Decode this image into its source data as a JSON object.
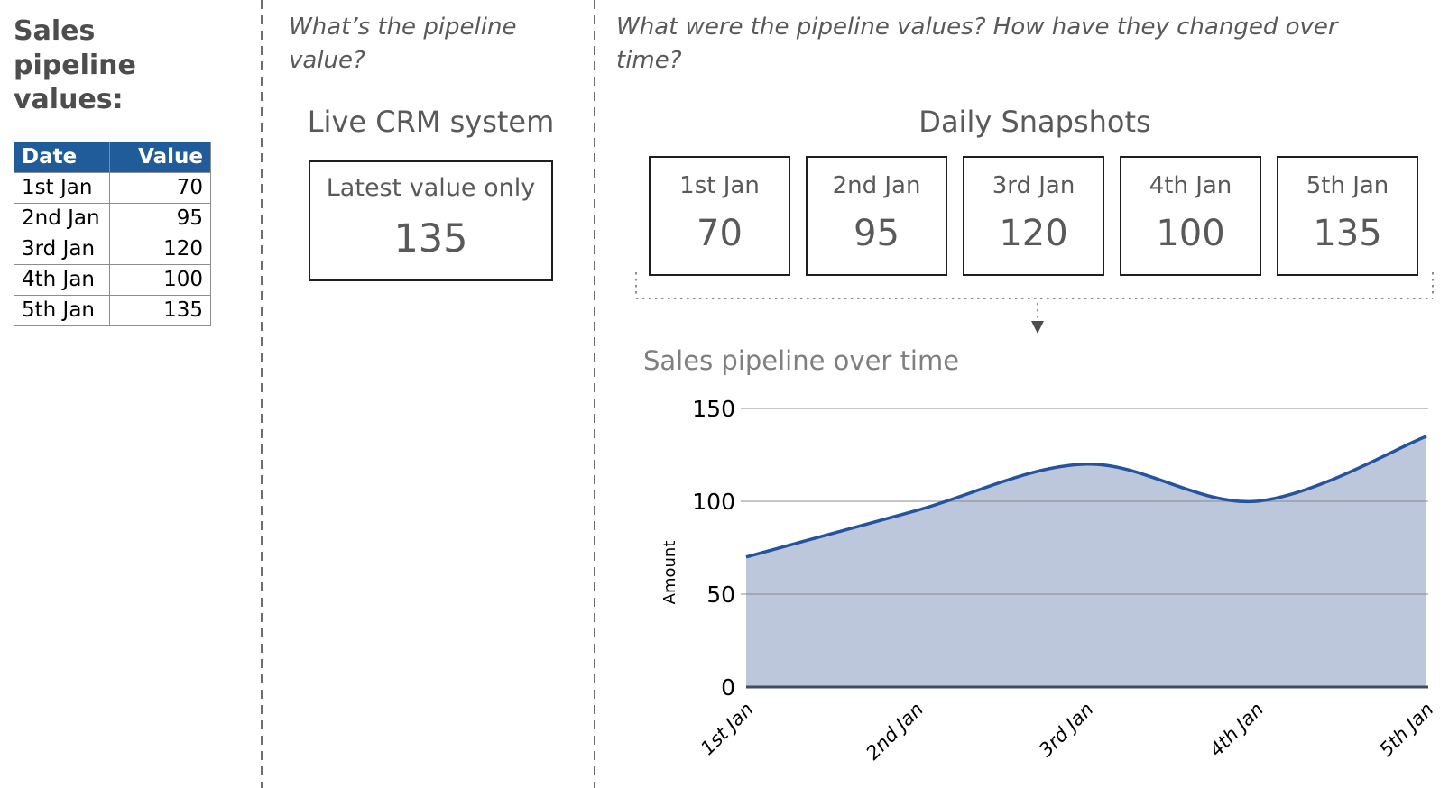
{
  "left_panel": {
    "heading": "Sales pipeline values:",
    "table": {
      "headers": [
        "Date",
        "Value"
      ],
      "rows": [
        {
          "date": "1st Jan",
          "value": "70"
        },
        {
          "date": "2nd Jan",
          "value": "95"
        },
        {
          "date": "3rd Jan",
          "value": "120"
        },
        {
          "date": "4th Jan",
          "value": "100"
        },
        {
          "date": "5th Jan",
          "value": "135"
        }
      ],
      "header_bg": "#1F5C99"
    }
  },
  "middle_panel": {
    "question": "What’s the pipeline value?",
    "title": "Live CRM system",
    "box": {
      "label": "Latest value only",
      "value": "135"
    }
  },
  "right_panel": {
    "question": "What were the pipeline values? How have they changed over time?",
    "title": "Daily Snapshots",
    "snapshots": [
      {
        "label": "1st Jan",
        "value": "70"
      },
      {
        "label": "2nd Jan",
        "value": "95"
      },
      {
        "label": "3rd Jan",
        "value": "120"
      },
      {
        "label": "4th Jan",
        "value": "100"
      },
      {
        "label": "5th Jan",
        "value": "135"
      }
    ]
  },
  "chart_data": {
    "type": "area",
    "title": "Sales pipeline over time",
    "xlabel": "",
    "ylabel": "Amount",
    "categories": [
      "1st Jan",
      "2nd Jan",
      "3rd Jan",
      "4th Jan",
      "5th Jan"
    ],
    "values": [
      70,
      95,
      120,
      100,
      135
    ],
    "ylim": [
      0,
      150
    ],
    "yticks": [
      0,
      50,
      100,
      150
    ],
    "grid": true,
    "legend": false,
    "smooth": true,
    "line_color": "#24549E",
    "fill_color": "#B9C4DA",
    "baseline_color": "#3F4D63",
    "gridline_color": "#9B9B9B"
  },
  "colors": {
    "text_gray": "#595959",
    "heading_gray": "#4D4D4D",
    "title_gray": "#7F7F7F",
    "divider_gray": "#6E6E6E",
    "table_header_bg": "#1F5C99"
  }
}
